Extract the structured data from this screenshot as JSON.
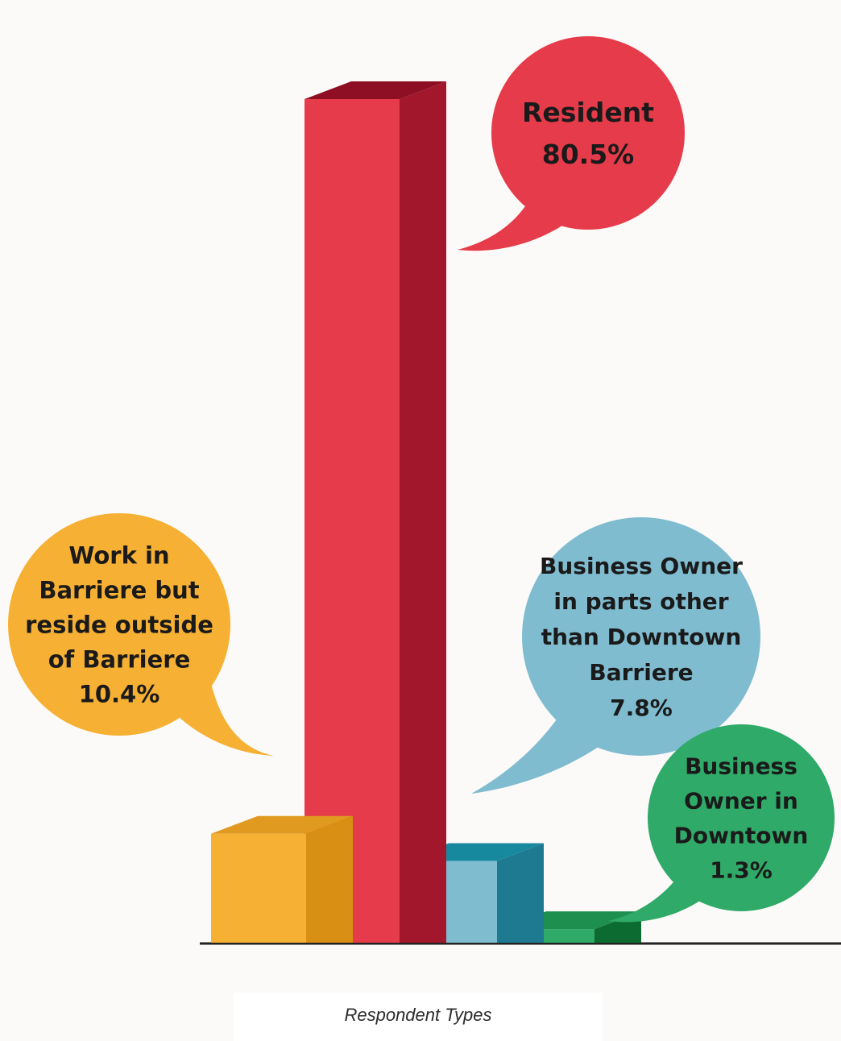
{
  "caption": "Respondent Types",
  "chart_data": {
    "type": "bar",
    "categories": [
      "Work in Barriere but reside outside of Barriere",
      "Resident",
      "Business Owner in parts other than Downtown Barriere",
      "Business Owner in Downtown"
    ],
    "values": [
      10.4,
      80.5,
      7.8,
      1.3
    ],
    "value_labels": [
      "10.4%",
      "80.5%",
      "7.8%",
      "1.3%"
    ],
    "label_lines": [
      [
        "Work in",
        "Barriere but",
        "reside outside",
        "of Barriere"
      ],
      [
        "Resident"
      ],
      [
        "Business Owner",
        "in parts other",
        "than Downtown",
        "Barriere"
      ],
      [
        "Business",
        "Owner in",
        "Downtown"
      ]
    ],
    "colors": [
      {
        "front": "#f6b033",
        "side": "#d98e14",
        "top": "#e09a20"
      },
      {
        "front": "#e63b4a",
        "side": "#a3172c",
        "top": "#8e0f24"
      },
      {
        "front": "#80bcd0",
        "side": "#1d7a91",
        "top": "#17899f"
      },
      {
        "front": "#2faa68",
        "side": "#0c6b30",
        "top": "#1e8f4f"
      }
    ],
    "bubble_colors": [
      "#f6b033",
      "#e63b4a",
      "#80bcd0",
      "#2faa68"
    ],
    "title": "Respondent Types",
    "xlabel": "",
    "ylabel": "",
    "ylim": [
      0,
      80.5
    ],
    "grid": false,
    "legend": "none"
  }
}
